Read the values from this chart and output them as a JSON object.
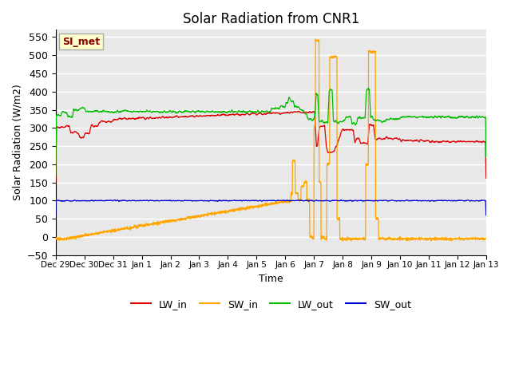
{
  "title": "Solar Radiation from CNR1",
  "xlabel": "Time",
  "ylabel": "Solar Radiation (W/m2)",
  "ylim": [
    -50,
    570
  ],
  "annotation_text": "SI_met",
  "annotation_color": "#8B0000",
  "annotation_bg": "#FFFFCC",
  "annotation_border": "#AAAAAA",
  "colors": {
    "LW_in": "#DD0000",
    "SW_in": "#FFA500",
    "LW_out": "#00BB00",
    "SW_out": "#0000CC"
  },
  "bg_color": "#E8E8E8",
  "grid_color": "#FFFFFF"
}
